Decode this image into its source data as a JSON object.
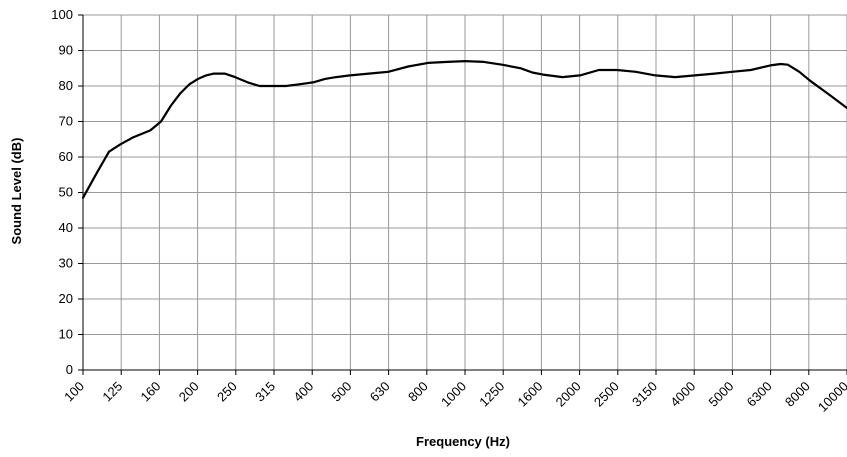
{
  "chart_data": {
    "type": "line",
    "title": "",
    "xlabel": "Frequency (Hz)",
    "ylabel": "Sound Level (dB)",
    "ylim": [
      0,
      100
    ],
    "y_ticks": [
      0,
      10,
      20,
      30,
      40,
      50,
      60,
      70,
      80,
      90,
      100
    ],
    "x_scale": "log (third-octave bands)",
    "categories": [
      "100",
      "125",
      "160",
      "200",
      "250",
      "315",
      "400",
      "500",
      "630",
      "800",
      "1000",
      "1250",
      "1600",
      "2000",
      "2500",
      "3150",
      "4000",
      "5000",
      "6300",
      "8000",
      "10000"
    ],
    "grid": true,
    "legend": "none",
    "line_color": "#000000",
    "series": [
      {
        "x": [
          100,
          108,
          117,
          125,
          135,
          150,
          160,
          170,
          180,
          190,
          200,
          210,
          220,
          235,
          250,
          270,
          290,
          315,
          340,
          370,
          400,
          430,
          460,
          500,
          560,
          630,
          710,
          800,
          900,
          1000,
          1120,
          1250,
          1400,
          1500,
          1600,
          1800,
          2000,
          2240,
          2500,
          2800,
          3150,
          3550,
          4000,
          4500,
          5000,
          5600,
          6300,
          6700,
          7000,
          7500,
          8000,
          9000,
          10000
        ],
        "values": [
          48.5,
          55,
          61.5,
          63.5,
          65.5,
          67.5,
          70,
          74.5,
          78,
          80.5,
          82,
          83,
          83.5,
          83.5,
          82.5,
          81,
          80,
          80,
          80,
          80.5,
          81,
          82,
          82.5,
          83,
          83.5,
          84,
          85.5,
          86.5,
          86.8,
          87,
          86.8,
          86,
          85,
          83.8,
          83.2,
          82.5,
          83,
          84.5,
          84.5,
          84,
          83,
          82.5,
          83,
          83.5,
          84,
          84.5,
          85.8,
          86.2,
          86,
          84,
          81.5,
          77.5,
          73.8
        ]
      }
    ]
  }
}
